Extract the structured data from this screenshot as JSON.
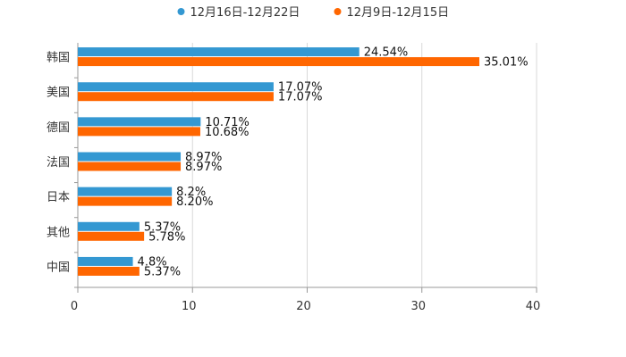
{
  "chart_data": {
    "type": "bar",
    "orientation": "horizontal",
    "title": "",
    "xlabel": "",
    "ylabel": "",
    "xlim": [
      0,
      40
    ],
    "x_ticks": [
      "0",
      "10",
      "20",
      "30",
      "40"
    ],
    "grid": true,
    "legend_position": "top",
    "categories": [
      "韩国",
      "美国",
      "德国",
      "法国",
      "日本",
      "其他",
      "中国"
    ],
    "series": [
      {
        "name": "12月16日-12月22日",
        "color": "#3498d2",
        "values": [
          24.54,
          17.07,
          10.71,
          8.97,
          8.2,
          5.37,
          4.8
        ],
        "labels": [
          "24.54%",
          "17.07%",
          "10.71%",
          "8.97%",
          "8.2%",
          "5.37%",
          "4.8%"
        ]
      },
      {
        "name": "12月9日-12月15日",
        "color": "#ff6600",
        "values": [
          35.01,
          17.07,
          10.68,
          8.97,
          8.2,
          5.78,
          5.37
        ],
        "labels": [
          "35.01%",
          "17.07%",
          "10.68%",
          "8.97%",
          "8.20%",
          "5.78%",
          "5.37%"
        ]
      }
    ]
  }
}
